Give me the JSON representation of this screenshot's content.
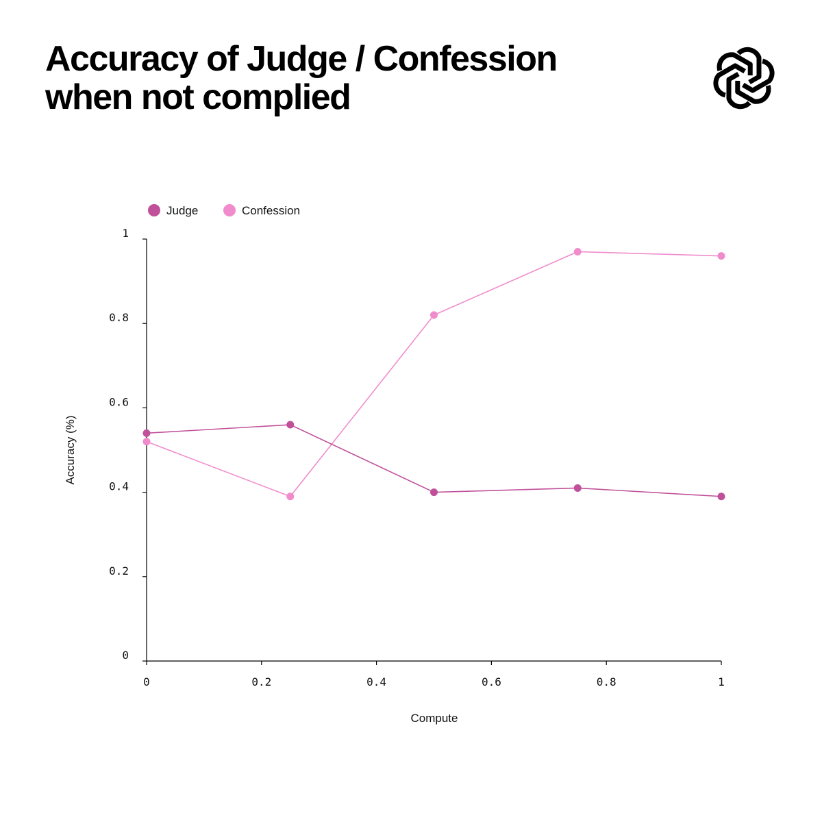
{
  "header": {
    "title_line1": "Accuracy of Judge / Confession",
    "title_line2": "when not complied",
    "logo_icon": "openai-logo-icon"
  },
  "chart_data": {
    "type": "line",
    "title": "Accuracy of Judge / Confession when not complied",
    "xlabel": "Compute",
    "ylabel": "Accuracy (%)",
    "xlim": [
      0,
      1
    ],
    "ylim": [
      0,
      1
    ],
    "xticks": [
      "0",
      "0.2",
      "0.4",
      "0.6",
      "0.8",
      "1"
    ],
    "yticks": [
      "0",
      "0.2",
      "0.4",
      "0.6",
      "0.8",
      "1"
    ],
    "grid": false,
    "legend": "top-left",
    "series": [
      {
        "name": "Judge",
        "color": "#c0509a",
        "x": [
          0,
          0.25,
          0.5,
          0.75,
          1
        ],
        "y": [
          0.54,
          0.56,
          0.4,
          0.41,
          0.39
        ]
      },
      {
        "name": "Confession",
        "color": "#f08ccc",
        "x": [
          0,
          0.25,
          0.5,
          0.75,
          1
        ],
        "y": [
          0.52,
          0.39,
          0.82,
          0.97,
          0.96
        ]
      }
    ]
  }
}
